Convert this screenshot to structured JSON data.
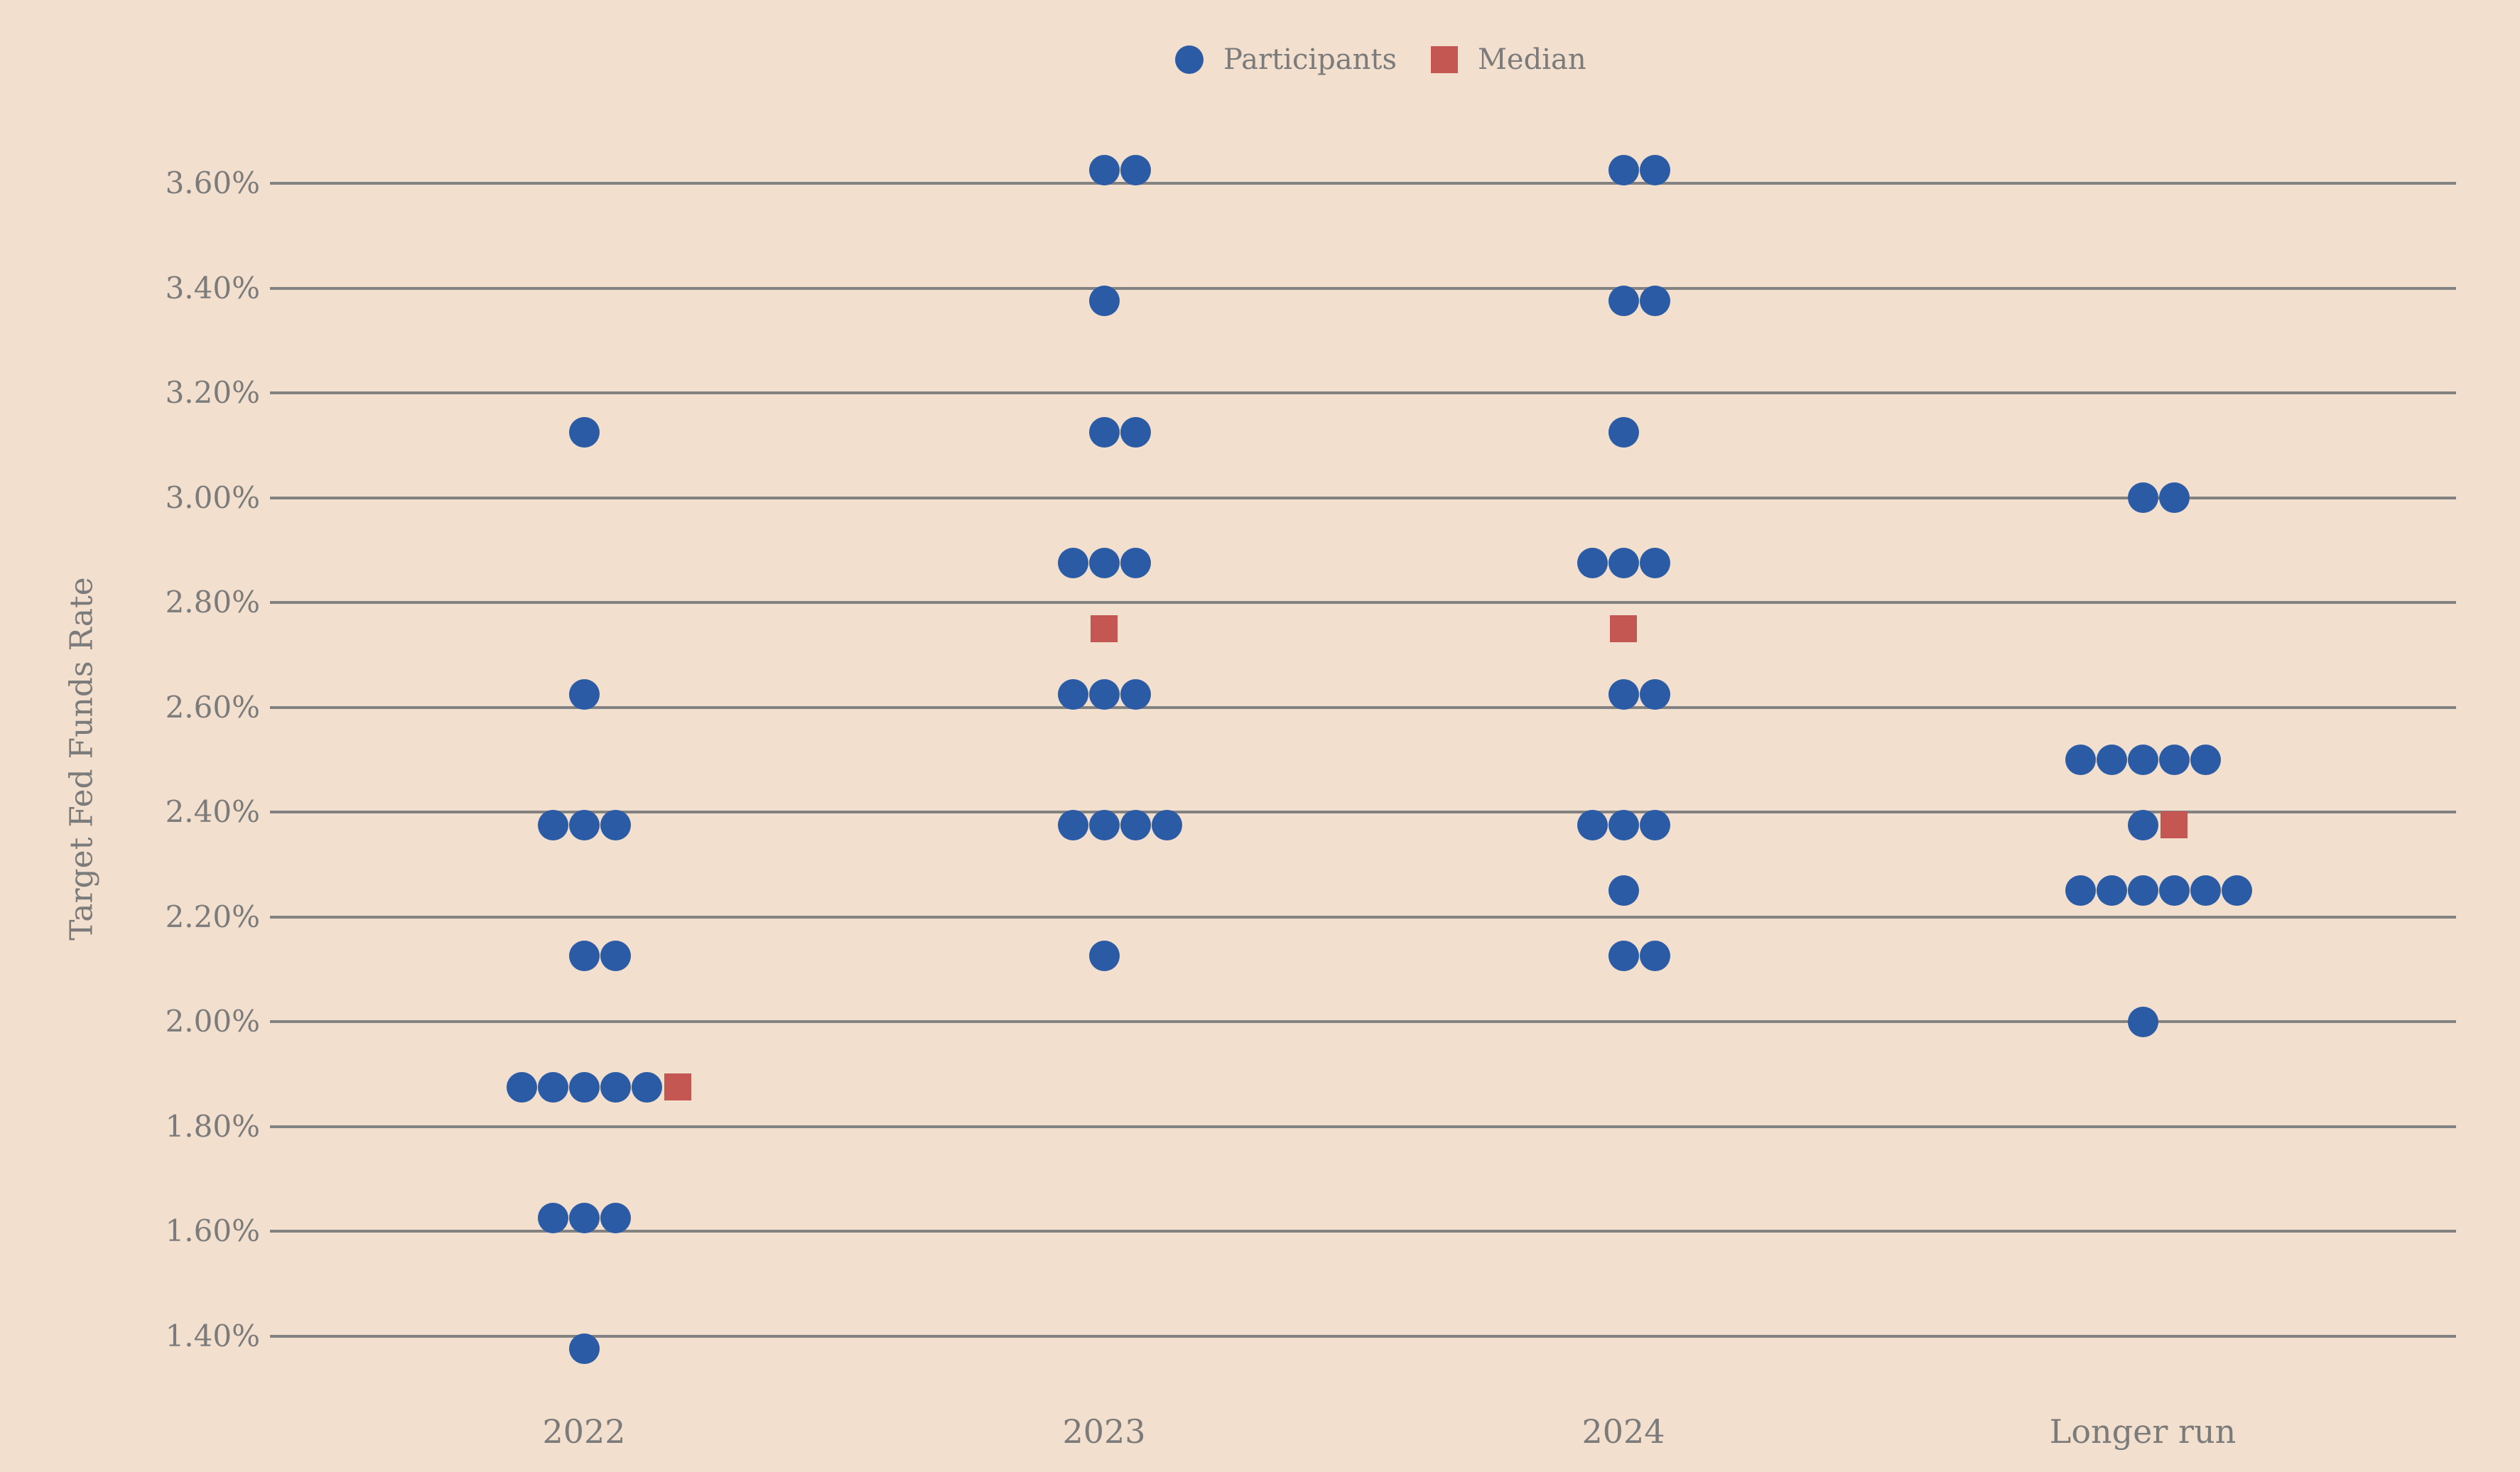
{
  "legend": {
    "participants_label": "Participants",
    "median_label": "Median"
  },
  "y_axis": {
    "title": "Target Fed Funds Rate",
    "ticks": [
      {
        "label": "3.60%",
        "value": 3.6
      },
      {
        "label": "3.40%",
        "value": 3.4
      },
      {
        "label": "3.20%",
        "value": 3.2
      },
      {
        "label": "3.00%",
        "value": 3.0
      },
      {
        "label": "2.80%",
        "value": 2.8
      },
      {
        "label": "2.60%",
        "value": 2.6
      },
      {
        "label": "2.40%",
        "value": 2.4
      },
      {
        "label": "2.20%",
        "value": 2.2
      },
      {
        "label": "2.00%",
        "value": 2.0
      },
      {
        "label": "1.80%",
        "value": 1.8
      },
      {
        "label": "1.60%",
        "value": 1.6
      },
      {
        "label": "1.40%",
        "value": 1.4
      }
    ]
  },
  "x_axis": {
    "categories": [
      "2022",
      "2023",
      "2024",
      "Longer run"
    ]
  },
  "chart_data": {
    "type": "scatter",
    "subtype": "fomc-dot-plot",
    "unit": "percent",
    "ylabel": "Target Fed Funds Rate",
    "ylim": [
      1.4,
      3.6
    ],
    "grid": "horizontal",
    "legend_position": "top-center",
    "series": [
      {
        "name": "Participants",
        "marker": "circle",
        "color": "#2c5ba6"
      },
      {
        "name": "Median",
        "marker": "square",
        "color": "#c45752"
      }
    ],
    "columns": [
      {
        "label": "2022",
        "median": 1.875,
        "dots": [
          {
            "rate": 3.125,
            "count": 1
          },
          {
            "rate": 2.625,
            "count": 1
          },
          {
            "rate": 2.375,
            "count": 3
          },
          {
            "rate": 2.125,
            "count": 2
          },
          {
            "rate": 1.875,
            "count": 5
          },
          {
            "rate": 1.625,
            "count": 3
          },
          {
            "rate": 1.375,
            "count": 1
          }
        ]
      },
      {
        "label": "2023",
        "median": 2.75,
        "dots": [
          {
            "rate": 3.625,
            "count": 2
          },
          {
            "rate": 3.375,
            "count": 1
          },
          {
            "rate": 3.125,
            "count": 2
          },
          {
            "rate": 2.875,
            "count": 3
          },
          {
            "rate": 2.625,
            "count": 3
          },
          {
            "rate": 2.375,
            "count": 4
          },
          {
            "rate": 2.125,
            "count": 1
          }
        ]
      },
      {
        "label": "2024",
        "median": 2.75,
        "dots": [
          {
            "rate": 3.625,
            "count": 2
          },
          {
            "rate": 3.375,
            "count": 2
          },
          {
            "rate": 3.125,
            "count": 1
          },
          {
            "rate": 2.875,
            "count": 3
          },
          {
            "rate": 2.625,
            "count": 2
          },
          {
            "rate": 2.375,
            "count": 3
          },
          {
            "rate": 2.25,
            "count": 1
          },
          {
            "rate": 2.125,
            "count": 2
          }
        ]
      },
      {
        "label": "Longer run",
        "median": 2.375,
        "dots": [
          {
            "rate": 3.0,
            "count": 2
          },
          {
            "rate": 2.5,
            "count": 5
          },
          {
            "rate": 2.375,
            "count": 1
          },
          {
            "rate": 2.25,
            "count": 6
          },
          {
            "rate": 2.0,
            "count": 1
          }
        ]
      }
    ]
  },
  "style": {
    "background": "#f2dfcd",
    "dot_blue": "#2c5ba6",
    "median_red": "#c45752",
    "gridline_gray": "#828282",
    "text_gray": "#7b7b7b"
  }
}
